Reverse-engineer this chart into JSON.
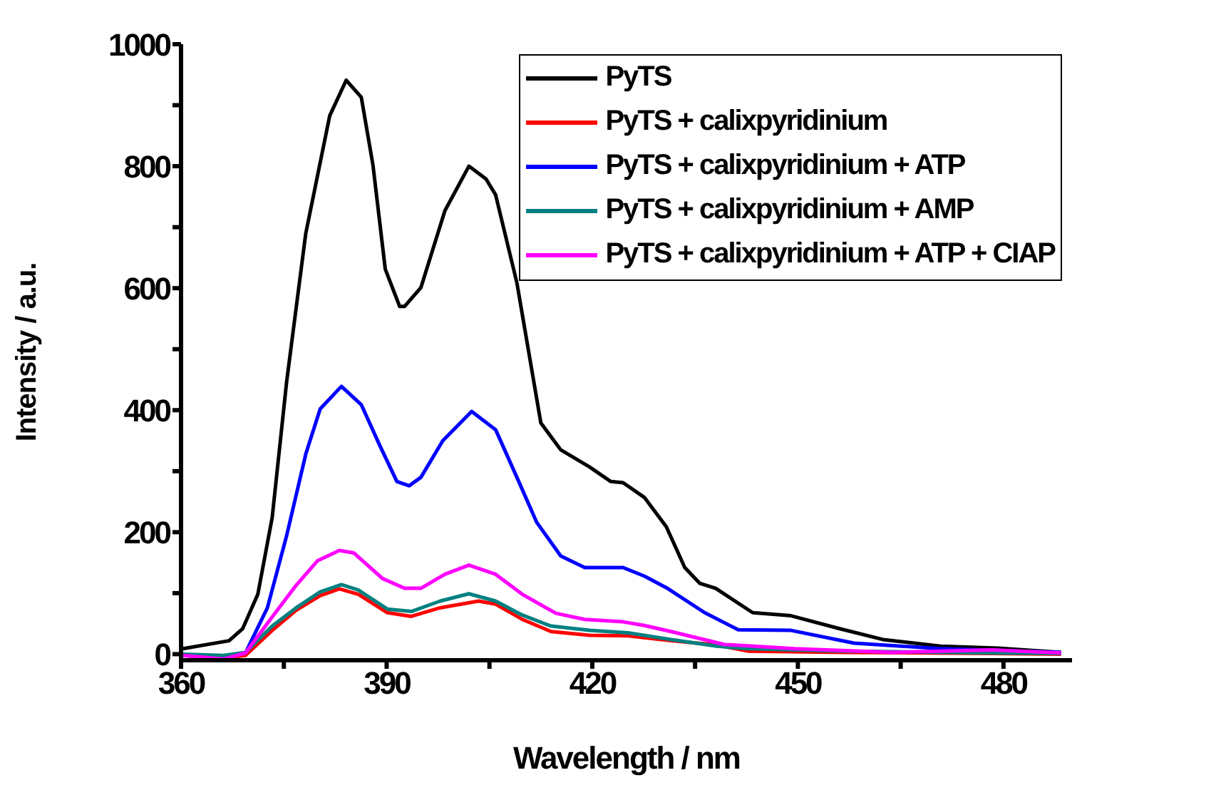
{
  "chart_data": {
    "type": "line",
    "xlabel": "Wavelength / nm",
    "ylabel": "Intensity / a.u.",
    "xlim": [
      360,
      490
    ],
    "xticks": [
      360,
      {
        "value": 375,
        "label": null
      },
      390,
      {
        "value": 405,
        "label": null
      },
      420,
      {
        "value": 435,
        "label": null
      },
      450,
      {
        "value": 465,
        "label": null
      },
      480
    ],
    "ylim": [
      -10,
      1000
    ],
    "yticks": [
      0,
      {
        "value": 100,
        "label": null
      },
      200,
      {
        "value": 300,
        "label": null
      },
      400,
      {
        "value": 500,
        "label": null
      },
      600,
      {
        "value": 700,
        "label": null
      },
      800,
      {
        "value": 900,
        "label": null
      },
      1000
    ],
    "legend": "top right",
    "marker": "none",
    "line_style": "solid",
    "series": [
      {
        "name": "PyTS",
        "color": "#000000",
        "x": [
          360.3,
          367,
          369,
          371.2,
          373.3,
          375.4,
          378.2,
          381.7,
          384.1,
          386.3,
          388,
          389.8,
          391.9,
          392.6,
          395,
          398.5,
          402,
          404.5,
          405.9,
          409,
          412.5,
          415.4,
          419.6,
          422.7,
          424.5,
          427.6,
          430.8,
          433.5,
          435.7,
          438,
          443.4,
          449,
          456,
          462.4,
          470.8,
          479.2,
          488.4
        ],
        "values": [
          9,
          22,
          42,
          98,
          224,
          446,
          690,
          883,
          941,
          913,
          802,
          631,
          570,
          570,
          601,
          727,
          800,
          779,
          753,
          609,
          379,
          335,
          307,
          283,
          281,
          257,
          209,
          142,
          116,
          108,
          68,
          63,
          42,
          24,
          13,
          10,
          3
        ]
      },
      {
        "name": "PyTS + calixpyridinium",
        "color": "#ff0000",
        "x": [
          360.3,
          366.2,
          369.4,
          373.3,
          376.8,
          380.3,
          383.1,
          385.9,
          390.1,
          393.6,
          397.8,
          403.4,
          405.9,
          409.8,
          414,
          419.6,
          425.2,
          431.5,
          438.2,
          442.7,
          456.8,
          478.3,
          488.4
        ],
        "values": [
          -2,
          -6,
          -2,
          39,
          72,
          96,
          107,
          98,
          68,
          62,
          76,
          87,
          82,
          57,
          37,
          31,
          30,
          22,
          15,
          5,
          3,
          1,
          0
        ]
      },
      {
        "name": "PyTS + calixpyridinium + ATP",
        "color": "#0000ff",
        "x": [
          360.3,
          366.2,
          369.4,
          372.6,
          375.4,
          378.2,
          380.3,
          383.4,
          386.3,
          389,
          391.5,
          393.3,
          395,
          398.2,
          402.4,
          405.9,
          409,
          411.9,
          415.4,
          418.9,
          424.5,
          427.6,
          430.8,
          436.4,
          441.3,
          449,
          458.2,
          470.8,
          488.4
        ],
        "values": [
          -2,
          -6,
          2,
          76,
          194,
          328,
          402,
          439,
          409,
          342,
          283,
          276,
          290,
          350,
          398,
          368,
          290,
          216,
          161,
          142,
          142,
          128,
          109,
          68,
          40,
          39,
          18,
          9,
          3
        ]
      },
      {
        "name": "PyTS + calixpyridinium + AMP",
        "color": "#008080",
        "x": [
          360.3,
          366.2,
          369.4,
          373.3,
          376.8,
          380.3,
          383.4,
          385.9,
          390.1,
          393.6,
          397.8,
          402,
          405.9,
          409.8,
          414,
          419.6,
          425.2,
          431.5,
          438.2,
          442.7,
          456.8,
          478.3,
          488.4
        ],
        "values": [
          0,
          -2,
          3,
          46,
          76,
          102,
          114,
          105,
          74,
          70,
          87,
          99,
          87,
          64,
          46,
          39,
          35,
          24,
          13,
          9,
          5,
          2,
          1
        ]
      },
      {
        "name": "PyTS + calixpyridinium + ATP + CIAP",
        "color": "#ff00ff",
        "x": [
          360.3,
          366.2,
          369.4,
          373.3,
          376.8,
          379.9,
          383.1,
          385.2,
          389.4,
          392.6,
          395,
          398.5,
          402,
          405.9,
          409.8,
          414.7,
          418.9,
          424.5,
          427.6,
          431.5,
          439.2,
          449.5,
          463.8,
          478.3,
          488.4
        ],
        "values": [
          -2,
          -8,
          2,
          61,
          113,
          153,
          170,
          166,
          124,
          108,
          108,
          131,
          146,
          131,
          98,
          67,
          57,
          53,
          47,
          37,
          16,
          9,
          3,
          7,
          2
        ]
      }
    ]
  }
}
